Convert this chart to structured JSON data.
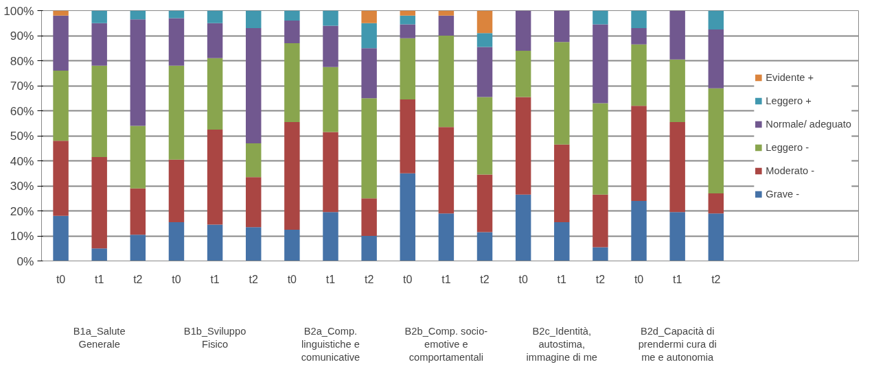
{
  "chart_data": {
    "type": "bar",
    "stacked": true,
    "categories": [
      "t0",
      "t1",
      "t2",
      "t0",
      "t1",
      "t2",
      "t0",
      "t1",
      "t2",
      "t0",
      "t1",
      "t2",
      "t0",
      "t1",
      "t2",
      "t0",
      "t1",
      "t2"
    ],
    "annotations": [
      "B1a_Salute Generale",
      "B1b_Sviluppo Fisico",
      "B2a_Comp. linguistiche e comunicative",
      "B2b_Comp. socio-emotive e comportamentali",
      "B2c_Identità, autostima, immagine di me",
      "B2d_Capacità di prendermi cura di me e autonomia"
    ],
    "series": [
      {
        "name": "Grave -",
        "color": "#4572a7",
        "values": [
          18,
          5,
          10.5,
          15.5,
          14.5,
          13.5,
          12.5,
          19.5,
          10,
          35,
          19,
          11.5,
          26.5,
          15.5,
          5.5,
          24,
          19.5,
          19
        ]
      },
      {
        "name": "Moderato -",
        "color": "#aa4643",
        "values": [
          30,
          36.5,
          18.5,
          25,
          38,
          20,
          43,
          32,
          15,
          29.5,
          34.5,
          23,
          39,
          31,
          21,
          38,
          36,
          8
        ]
      },
      {
        "name": "Leggero -",
        "color": "#89a54e",
        "values": [
          28,
          36.5,
          25,
          37.5,
          28.5,
          13.5,
          31.5,
          26,
          40,
          24.5,
          36.5,
          31,
          18.5,
          41,
          36.5,
          24.5,
          25,
          42
        ]
      },
      {
        "name": "Normale/ adeguato",
        "color": "#71588f",
        "values": [
          22,
          17,
          42.5,
          19,
          14,
          46,
          9,
          16.5,
          20,
          5.5,
          8,
          20,
          16,
          12.5,
          31.5,
          6.5,
          19.5,
          23.5
        ]
      },
      {
        "name": "Leggero +",
        "color": "#4198af",
        "values": [
          0,
          5,
          3.5,
          3,
          5,
          7,
          4,
          6,
          10,
          3.5,
          0,
          5.5,
          0,
          0,
          5.5,
          7,
          0,
          7.5
        ]
      },
      {
        "name": "Evidente +",
        "color": "#db843d",
        "values": [
          2,
          0,
          0,
          0,
          0,
          0,
          0,
          0,
          5,
          2,
          2,
          9,
          0,
          0,
          0,
          0,
          0,
          0
        ]
      }
    ],
    "ylim": [
      0,
      100
    ],
    "yticks": [
      {
        "value": 0,
        "label": "0%"
      },
      {
        "value": 10,
        "label": "10%"
      },
      {
        "value": 20,
        "label": "20%"
      },
      {
        "value": 30,
        "label": "30%"
      },
      {
        "value": 40,
        "label": "40%"
      },
      {
        "value": 50,
        "label": "50%"
      },
      {
        "value": 60,
        "label": "60%"
      },
      {
        "value": 70,
        "label": "70%"
      },
      {
        "value": 80,
        "label": "80%"
      },
      {
        "value": 90,
        "label": "90%"
      },
      {
        "value": 100,
        "label": "100%"
      }
    ],
    "grid": "y",
    "legend": "right"
  }
}
